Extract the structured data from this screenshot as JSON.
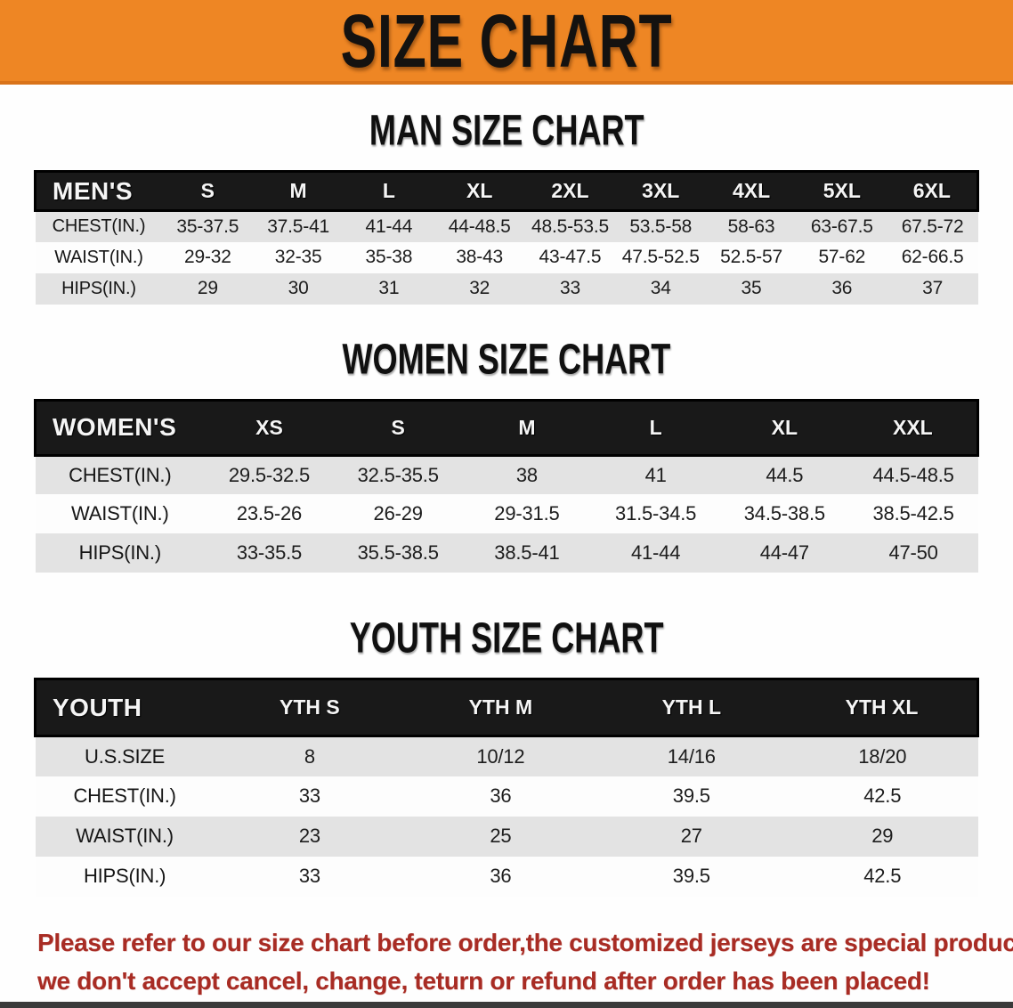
{
  "banner": {
    "title": "SIZE CHART"
  },
  "sections": [
    {
      "heading": "MAN SIZE CHART",
      "table_title": "MEN'S",
      "columns": [
        "S",
        "M",
        "L",
        "XL",
        "2XL",
        "3XL",
        "4XL",
        "5XL",
        "6XL"
      ],
      "rows": [
        {
          "label": "CHEST(IN.)",
          "values": [
            "35-37.5",
            "37.5-41",
            "41-44",
            "44-48.5",
            "48.5-53.5",
            "53.5-58",
            "58-63",
            "63-67.5",
            "67.5-72"
          ]
        },
        {
          "label": "WAIST(IN.)",
          "values": [
            "29-32",
            "32-35",
            "35-38",
            "38-43",
            "43-47.5",
            "47.5-52.5",
            "52.5-57",
            "57-62",
            "62-66.5"
          ]
        },
        {
          "label": "HIPS(IN.)",
          "values": [
            "29",
            "30",
            "31",
            "32",
            "33",
            "34",
            "35",
            "36",
            "37"
          ]
        }
      ]
    },
    {
      "heading": "WOMEN SIZE CHART",
      "table_title": "WOMEN'S",
      "columns": [
        "XS",
        "S",
        "M",
        "L",
        "XL",
        "XXL"
      ],
      "rows": [
        {
          "label": "CHEST(IN.)",
          "values": [
            "29.5-32.5",
            "32.5-35.5",
            "38",
            "41",
            "44.5",
            "44.5-48.5"
          ]
        },
        {
          "label": "WAIST(IN.)",
          "values": [
            "23.5-26",
            "26-29",
            "29-31.5",
            "31.5-34.5",
            "34.5-38.5",
            "38.5-42.5"
          ]
        },
        {
          "label": "HIPS(IN.)",
          "values": [
            "33-35.5",
            "35.5-38.5",
            "38.5-41",
            "41-44",
            "44-47",
            "47-50"
          ]
        }
      ]
    },
    {
      "heading": "YOUTH SIZE CHART",
      "table_title": "YOUTH",
      "columns": [
        "YTH S",
        "YTH M",
        "YTH L",
        "YTH XL"
      ],
      "rows": [
        {
          "label": "U.S.SIZE",
          "values": [
            "8",
            "10/12",
            "14/16",
            "18/20"
          ]
        },
        {
          "label": "CHEST(IN.)",
          "values": [
            "33",
            "36",
            "39.5",
            "42.5"
          ]
        },
        {
          "label": "WAIST(IN.)",
          "values": [
            "23",
            "25",
            "27",
            "29"
          ]
        },
        {
          "label": "HIPS(IN.)",
          "values": [
            "33",
            "36",
            "39.5",
            "42.5"
          ]
        }
      ]
    }
  ],
  "footer": {
    "line1": "Please refer to our size chart before order,the customized jerseys are special products,",
    "line2": "we don't accept cancel, change, teturn or refund after order has been placed!"
  },
  "colors": {
    "banner_orange": "#ee8624",
    "banner_border": "#d9731a",
    "table_header_black": "#191919",
    "row_gray": "#e3e3e3",
    "row_white": "#fdfdfd",
    "disclaimer_red": "#a82c24"
  }
}
